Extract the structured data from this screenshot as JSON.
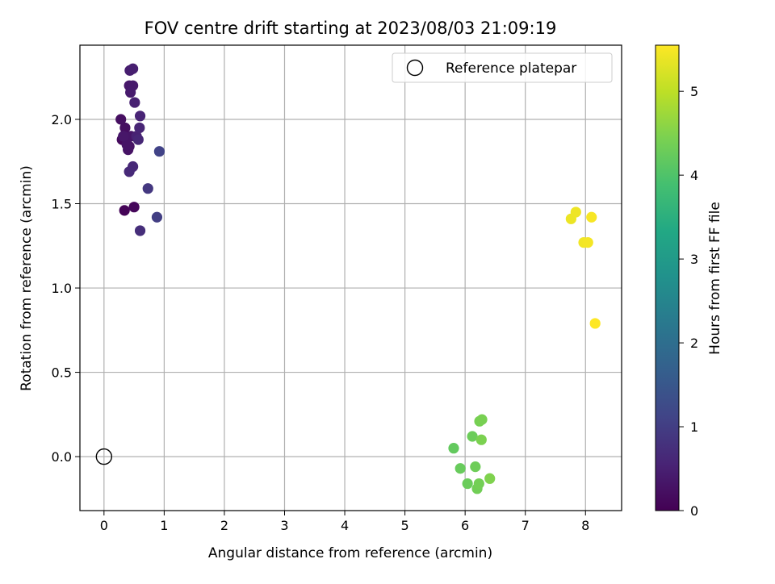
{
  "chart_data": {
    "type": "scatter",
    "title": "FOV centre drift starting at 2023/08/03 21:09:19",
    "xlabel": "Angular distance from reference (arcmin)",
    "ylabel": "Rotation from reference (arcmin)",
    "xlim": [
      -0.4,
      8.6
    ],
    "ylim": [
      -0.32,
      2.44
    ],
    "xticks": [
      "0",
      "1",
      "2",
      "3",
      "4",
      "5",
      "6",
      "7",
      "8"
    ],
    "yticks": [
      "0.0",
      "0.5",
      "1.0",
      "1.5",
      "2.0"
    ],
    "grid": true,
    "legend": {
      "position": "top-right",
      "entries": [
        "Reference platepar"
      ]
    },
    "reference_point": {
      "x": 0,
      "y": 0
    },
    "colorbar": {
      "label": "Hours from first FF file",
      "colormap": "viridis",
      "range": [
        0,
        5.55
      ],
      "ticks": [
        "0",
        "1",
        "2",
        "3",
        "4",
        "5"
      ]
    },
    "points": [
      {
        "x": 0.34,
        "y": 1.46,
        "h": 0.05
      },
      {
        "x": 0.5,
        "y": 1.48,
        "h": 0.1
      },
      {
        "x": 0.3,
        "y": 1.88,
        "h": 0.15
      },
      {
        "x": 0.35,
        "y": 1.95,
        "h": 0.2
      },
      {
        "x": 0.28,
        "y": 2.0,
        "h": 0.22
      },
      {
        "x": 0.42,
        "y": 1.84,
        "h": 0.25
      },
      {
        "x": 0.4,
        "y": 1.82,
        "h": 0.28
      },
      {
        "x": 0.38,
        "y": 1.85,
        "h": 0.3
      },
      {
        "x": 0.45,
        "y": 1.9,
        "h": 0.32
      },
      {
        "x": 0.32,
        "y": 1.9,
        "h": 0.35
      },
      {
        "x": 0.42,
        "y": 2.2,
        "h": 0.37
      },
      {
        "x": 0.48,
        "y": 2.2,
        "h": 0.4
      },
      {
        "x": 0.44,
        "y": 2.16,
        "h": 0.42
      },
      {
        "x": 0.43,
        "y": 2.29,
        "h": 0.45
      },
      {
        "x": 0.48,
        "y": 2.3,
        "h": 0.47
      },
      {
        "x": 0.51,
        "y": 2.1,
        "h": 0.5
      },
      {
        "x": 0.54,
        "y": 1.9,
        "h": 0.52
      },
      {
        "x": 0.6,
        "y": 2.02,
        "h": 0.55
      },
      {
        "x": 0.59,
        "y": 1.95,
        "h": 0.57
      },
      {
        "x": 0.57,
        "y": 1.88,
        "h": 0.6
      },
      {
        "x": 0.48,
        "y": 1.72,
        "h": 0.62
      },
      {
        "x": 0.42,
        "y": 1.69,
        "h": 0.65
      },
      {
        "x": 0.6,
        "y": 1.34,
        "h": 0.72
      },
      {
        "x": 0.73,
        "y": 1.59,
        "h": 0.9
      },
      {
        "x": 0.88,
        "y": 1.42,
        "h": 1.0
      },
      {
        "x": 0.92,
        "y": 1.81,
        "h": 1.1
      },
      {
        "x": 5.81,
        "y": 0.05,
        "h": 4.2
      },
      {
        "x": 5.92,
        "y": -0.07,
        "h": 4.25
      },
      {
        "x": 6.04,
        "y": -0.16,
        "h": 4.28
      },
      {
        "x": 6.12,
        "y": 0.12,
        "h": 4.3
      },
      {
        "x": 6.17,
        "y": -0.06,
        "h": 4.32
      },
      {
        "x": 6.2,
        "y": -0.19,
        "h": 4.35
      },
      {
        "x": 6.23,
        "y": -0.16,
        "h": 4.37
      },
      {
        "x": 6.24,
        "y": 0.21,
        "h": 4.4
      },
      {
        "x": 6.28,
        "y": 0.22,
        "h": 4.42
      },
      {
        "x": 6.27,
        "y": 0.1,
        "h": 4.45
      },
      {
        "x": 6.41,
        "y": -0.13,
        "h": 4.48
      },
      {
        "x": 7.76,
        "y": 1.41,
        "h": 5.4
      },
      {
        "x": 7.84,
        "y": 1.45,
        "h": 5.42
      },
      {
        "x": 7.97,
        "y": 1.27,
        "h": 5.45
      },
      {
        "x": 8.04,
        "y": 1.27,
        "h": 5.47
      },
      {
        "x": 8.1,
        "y": 1.42,
        "h": 5.5
      },
      {
        "x": 8.16,
        "y": 0.79,
        "h": 5.55
      }
    ]
  }
}
